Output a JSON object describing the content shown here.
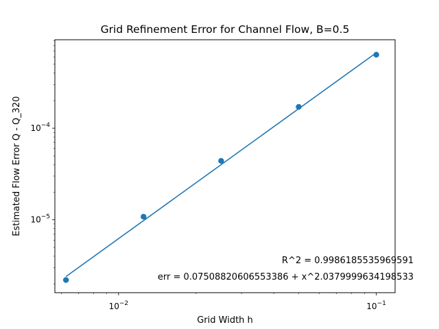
{
  "chart_data": {
    "type": "scatter",
    "title": "Grid Refinement Error for Channel Flow, B=0.5",
    "xlabel": "Grid Width h",
    "ylabel": "Estimated Flow Error Q - Q_320",
    "xscale": "log",
    "yscale": "log",
    "xlim": [
      0.00566,
      0.1183
    ],
    "ylim": [
      1.6e-06,
      0.000925
    ],
    "grid": false,
    "x_ticks": [
      {
        "value": 0.01,
        "base": "10",
        "exp": "−2"
      },
      {
        "value": 0.1,
        "base": "10",
        "exp": "−1"
      }
    ],
    "y_ticks": [
      {
        "value": 1e-05,
        "base": "10",
        "exp": "−5"
      },
      {
        "value": 0.0001,
        "base": "10",
        "exp": "−4"
      }
    ],
    "series": [
      {
        "type": "scatter",
        "color": "#1f77b4",
        "x": [
          0.00625,
          0.0125,
          0.025,
          0.05,
          0.1
        ],
        "y": [
          2.2e-06,
          1.08e-05,
          4.4e-05,
          0.000171,
          0.000635
        ]
      },
      {
        "type": "line",
        "color": "#1f77b4",
        "x": [
          0.00625,
          0.1
        ],
        "y": [
          2.4e-06,
          0.000667
        ]
      }
    ],
    "annotations": [
      {
        "text": "R^2 = 0.9986185535969591"
      },
      {
        "text": "err = 0.07508820606553386 + x^2.0379999634198533"
      }
    ]
  }
}
